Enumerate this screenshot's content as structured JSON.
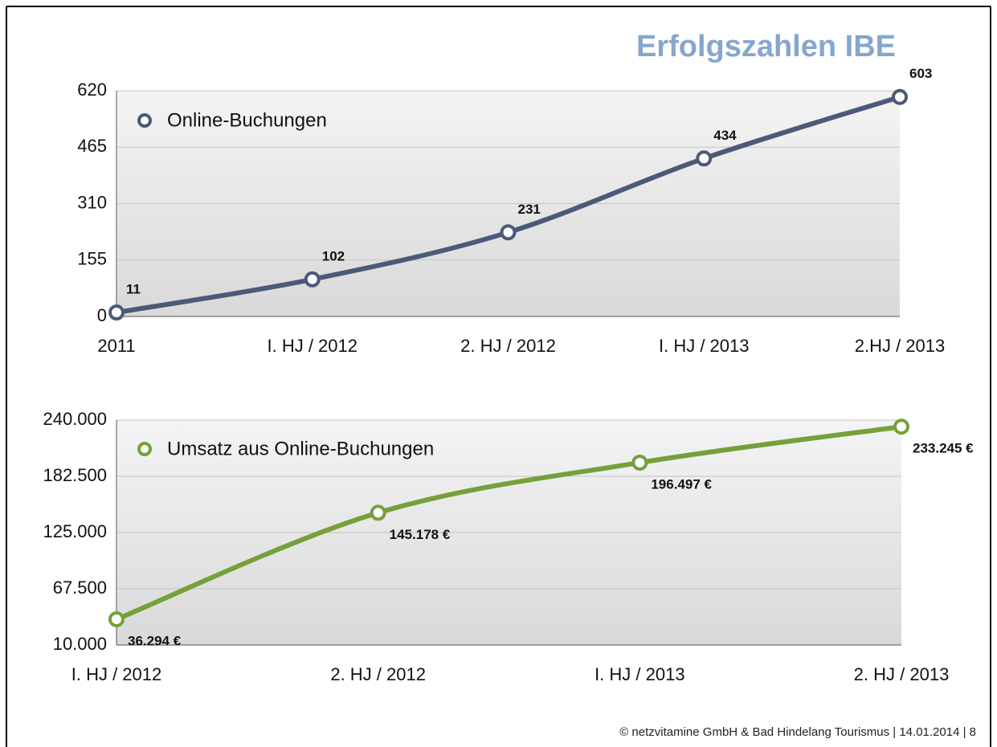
{
  "title": "Erfolgszahlen IBE",
  "footer": "© netzvitamine GmbH & Bad Hindelang Tourismus | 14.01.2014 | 8",
  "chart_data": [
    {
      "type": "line",
      "categories": [
        "2011",
        "I. HJ / 2012",
        "2. HJ / 2012",
        "I. HJ / 2013",
        "2.HJ / 2013"
      ],
      "series": [
        {
          "name": "Online-Buchungen",
          "color": "#4b5a78",
          "values": [
            11,
            102,
            231,
            434,
            603
          ]
        }
      ],
      "ylim": [
        0,
        620
      ],
      "yticks": [
        0,
        155,
        310,
        465,
        620
      ],
      "grid": true
    },
    {
      "type": "line",
      "categories": [
        "I. HJ / 2012",
        "2. HJ / 2012",
        "I. HJ / 2013",
        "2. HJ / 2013"
      ],
      "series": [
        {
          "name": "Umsatz aus Online-Buchungen",
          "color": "#76a03a",
          "values": [
            36294,
            145178,
            196497,
            233245
          ],
          "value_labels": [
            "36.294 €",
            "145.178 €",
            "196.497 €",
            "233.245 €"
          ]
        }
      ],
      "ylim": [
        10000,
        240000
      ],
      "yticks": [
        {
          "value": 10000,
          "label": "10.000"
        },
        {
          "value": 67500,
          "label": "67.500"
        },
        {
          "value": 125000,
          "label": "125.000"
        },
        {
          "value": 182500,
          "label": "182.500"
        },
        {
          "value": 240000,
          "label": "240.000"
        }
      ],
      "grid": true
    }
  ]
}
